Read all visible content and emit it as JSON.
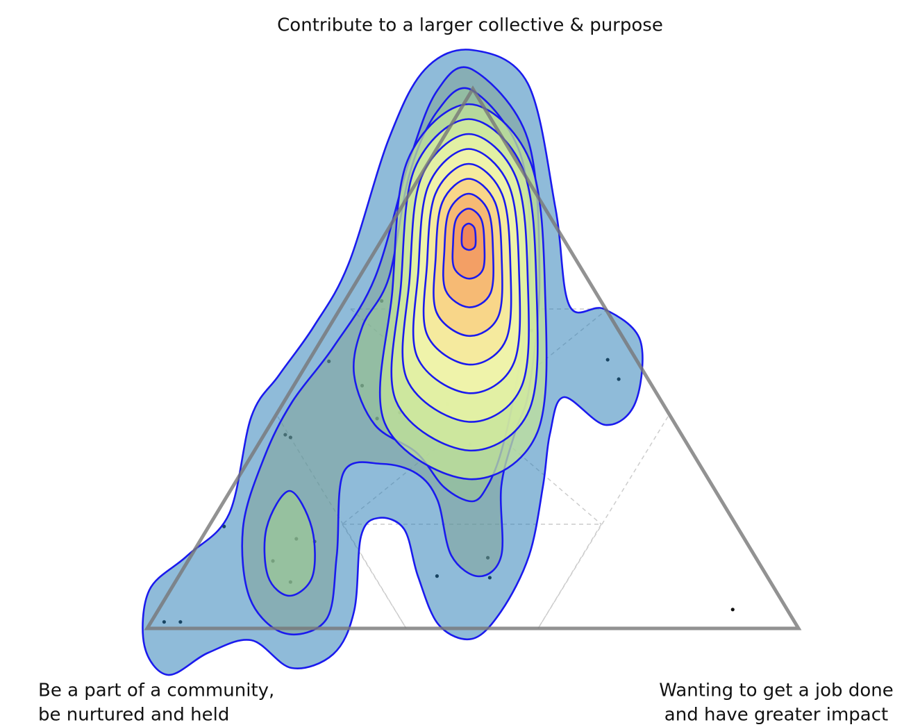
{
  "chart_data": {
    "type": "ternary",
    "top_label": "Contribute to a larger collective & purpose",
    "left_label": [
      "Be a part of a community,",
      "be nurtured and held"
    ],
    "right_label": [
      "Wanting to get a job done",
      "and have greater impact"
    ],
    "xlim": [
      0,
      1
    ],
    "ylim": [
      0,
      1
    ],
    "x": [
      0.026,
      0.051,
      0.118,
      0.212,
      0.22,
      0.279,
      0.36,
      0.33,
      0.353,
      0.388,
      0.461,
      0.496,
      0.59,
      0.707,
      0.724,
      0.445,
      0.526,
      0.523,
      0.229,
      0.257,
      0.193,
      0.22,
      0.899
    ],
    "y": [
      0.012,
      0.012,
      0.189,
      0.359,
      0.354,
      0.495,
      0.607,
      0.45,
      0.389,
      0.4,
      0.416,
      0.341,
      0.552,
      0.498,
      0.462,
      0.097,
      0.094,
      0.131,
      0.166,
      0.161,
      0.125,
      0.086,
      0.035
    ],
    "point_color": "#111111",
    "contour_color": "#1a1aee"
  }
}
